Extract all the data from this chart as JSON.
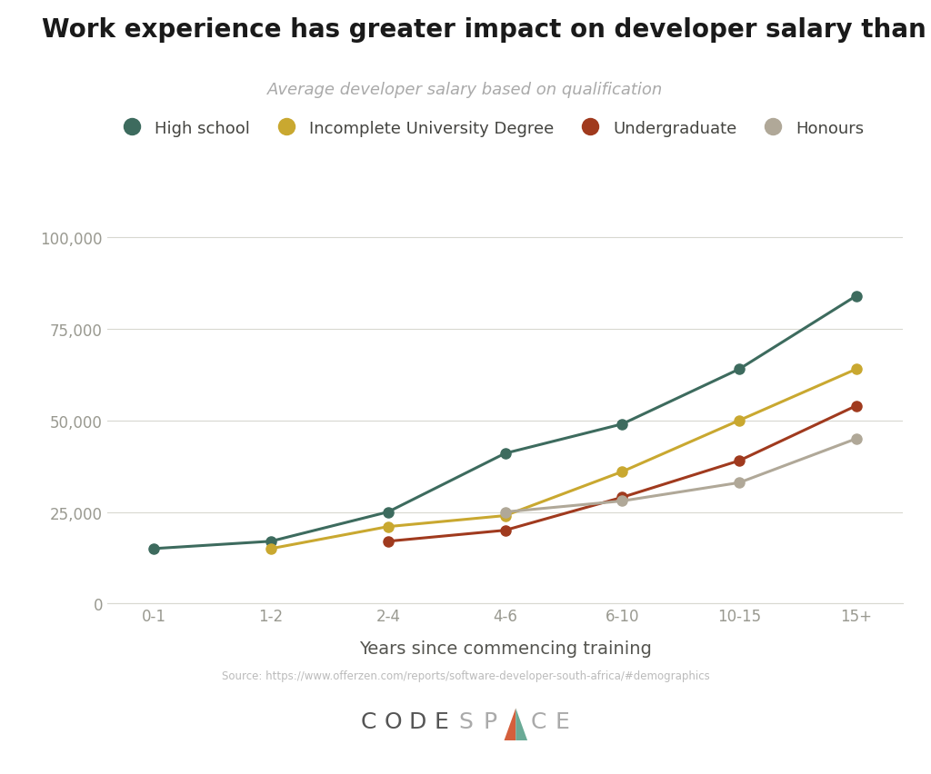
{
  "title": "Work experience has greater impact on developer salary than qualification",
  "subtitle": "Average developer salary based on qualification",
  "xlabel": "Years since commencing training",
  "source": "Source: https://www.offerzen.com/reports/software-developer-south-africa/#demographics",
  "background_color": "#ffffff",
  "x_labels": [
    "0-1",
    "1-2",
    "2-4",
    "4-6",
    "6-10",
    "10-15",
    "15+"
  ],
  "series": [
    {
      "label": "High school",
      "color": "#3d6b5e",
      "values": [
        15000,
        17000,
        25000,
        41000,
        49000,
        64000,
        84000
      ]
    },
    {
      "label": "Incomplete University Degree",
      "color": "#c9a830",
      "values": [
        null,
        15000,
        21000,
        24000,
        36000,
        50000,
        64000
      ]
    },
    {
      "label": "Undergraduate",
      "color": "#a03a1e",
      "values": [
        null,
        null,
        17000,
        20000,
        29000,
        39000,
        54000
      ]
    },
    {
      "label": "Honours",
      "color": "#b0a898",
      "values": [
        null,
        null,
        null,
        25000,
        28000,
        33000,
        45000
      ]
    }
  ],
  "ylim": [
    0,
    110000
  ],
  "yticks": [
    0,
    25000,
    50000,
    75000,
    100000
  ],
  "ytick_labels": [
    "0",
    "25,000",
    "50,000",
    "75,000",
    "100,000"
  ],
  "title_fontsize": 20,
  "subtitle_fontsize": 13,
  "xlabel_fontsize": 14,
  "tick_fontsize": 12,
  "legend_fontsize": 13,
  "line_width": 2.2,
  "marker_size": 8,
  "codespace_dark": "#555555",
  "codespace_light": "#aaaaaa",
  "codespace_accent": "#d45f3c",
  "codespace_accent2": "#6aaa96"
}
